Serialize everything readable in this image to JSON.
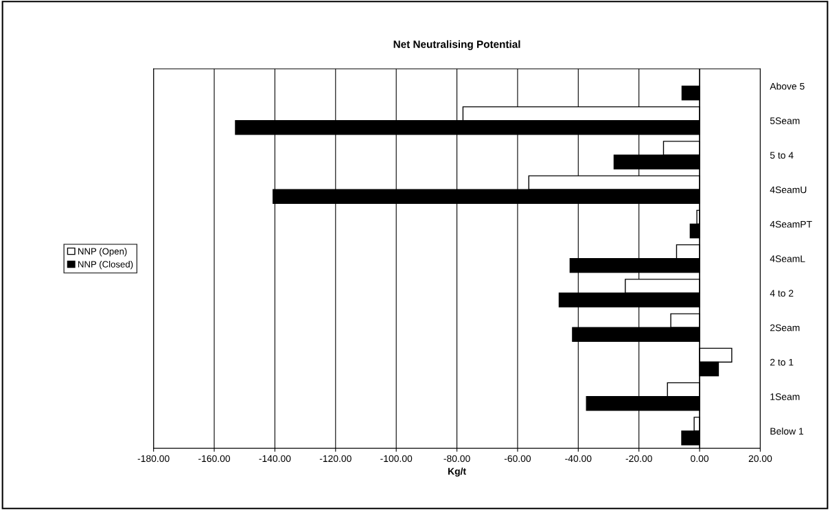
{
  "chart_data": {
    "type": "bar",
    "orientation": "horizontal",
    "title": "Net Neutralising Potential",
    "xlabel": "Kg/t",
    "categories": [
      "Above 5",
      "5Seam",
      "5 to 4",
      "4SeamU",
      "4SeamPT",
      "4SeamL",
      "4 to 2",
      "2Seam",
      "2 to 1",
      "1Seam",
      "Below 1"
    ],
    "series": [
      {
        "name": "NNP (Open)",
        "color": "#ffffff",
        "values": [
          null,
          -78,
          -11.9,
          -56.3,
          -0.9,
          -7.6,
          -24.5,
          -9.5,
          10.6,
          -10.6,
          -1.8
        ]
      },
      {
        "name": "NNP (Closed)",
        "color": "#000000",
        "values": [
          -5.8,
          -153,
          -28.2,
          -140.6,
          -3.1,
          -42.7,
          -46.3,
          -41.9,
          6.2,
          -37.3,
          -5.9
        ]
      }
    ],
    "xlim": [
      -180,
      20
    ],
    "xticks": [
      {
        "value": -180,
        "label": "-180.00"
      },
      {
        "value": -160,
        "label": "-160.00"
      },
      {
        "value": -140,
        "label": "-140.00"
      },
      {
        "value": -120,
        "label": "-120.00"
      },
      {
        "value": -100,
        "label": "-100.00"
      },
      {
        "value": -80,
        "label": "-80.00"
      },
      {
        "value": -60,
        "label": "-60.00"
      },
      {
        "value": -40,
        "label": "-40.00"
      },
      {
        "value": -20,
        "label": "-20.00"
      },
      {
        "value": 0,
        "label": "0.00"
      },
      {
        "value": 20,
        "label": "20.00"
      }
    ],
    "grid": "x",
    "legend": "left"
  }
}
